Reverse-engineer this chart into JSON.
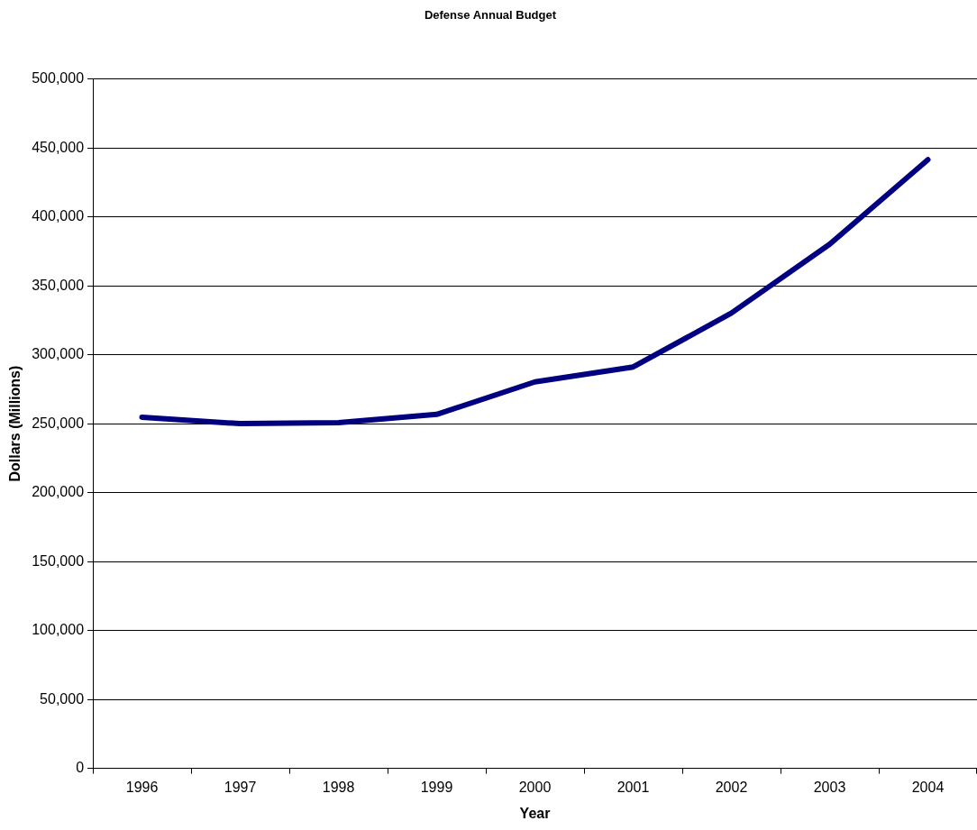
{
  "chart_data": {
    "type": "line",
    "title": "Defense Annual Budget",
    "xlabel": "Year",
    "ylabel": "Dollars (Millions)",
    "categories": [
      "1996",
      "1997",
      "1998",
      "1999",
      "2000",
      "2001",
      "2002",
      "2003",
      "2004"
    ],
    "series": [
      {
        "color": "#000080",
        "values": [
          254700,
          250000,
          250700,
          256700,
          280300,
          291100,
          330200,
          380100,
          441400
        ]
      }
    ],
    "ylim": [
      0,
      500000
    ],
    "yticks": [
      {
        "value": 0,
        "label": "0"
      },
      {
        "value": 50000,
        "label": "50,000"
      },
      {
        "value": 100000,
        "label": "100,000"
      },
      {
        "value": 150000,
        "label": "150,000"
      },
      {
        "value": 200000,
        "label": "200,000"
      },
      {
        "value": 250000,
        "label": "250,000"
      },
      {
        "value": 300000,
        "label": "300,000"
      },
      {
        "value": 350000,
        "label": "350,000"
      },
      {
        "value": 400000,
        "label": "400,000"
      },
      {
        "value": 450000,
        "label": "450,000"
      },
      {
        "value": 500000,
        "label": "500,000"
      }
    ],
    "grid": "y",
    "legend": false,
    "marker": "none",
    "line_style": "solid"
  }
}
